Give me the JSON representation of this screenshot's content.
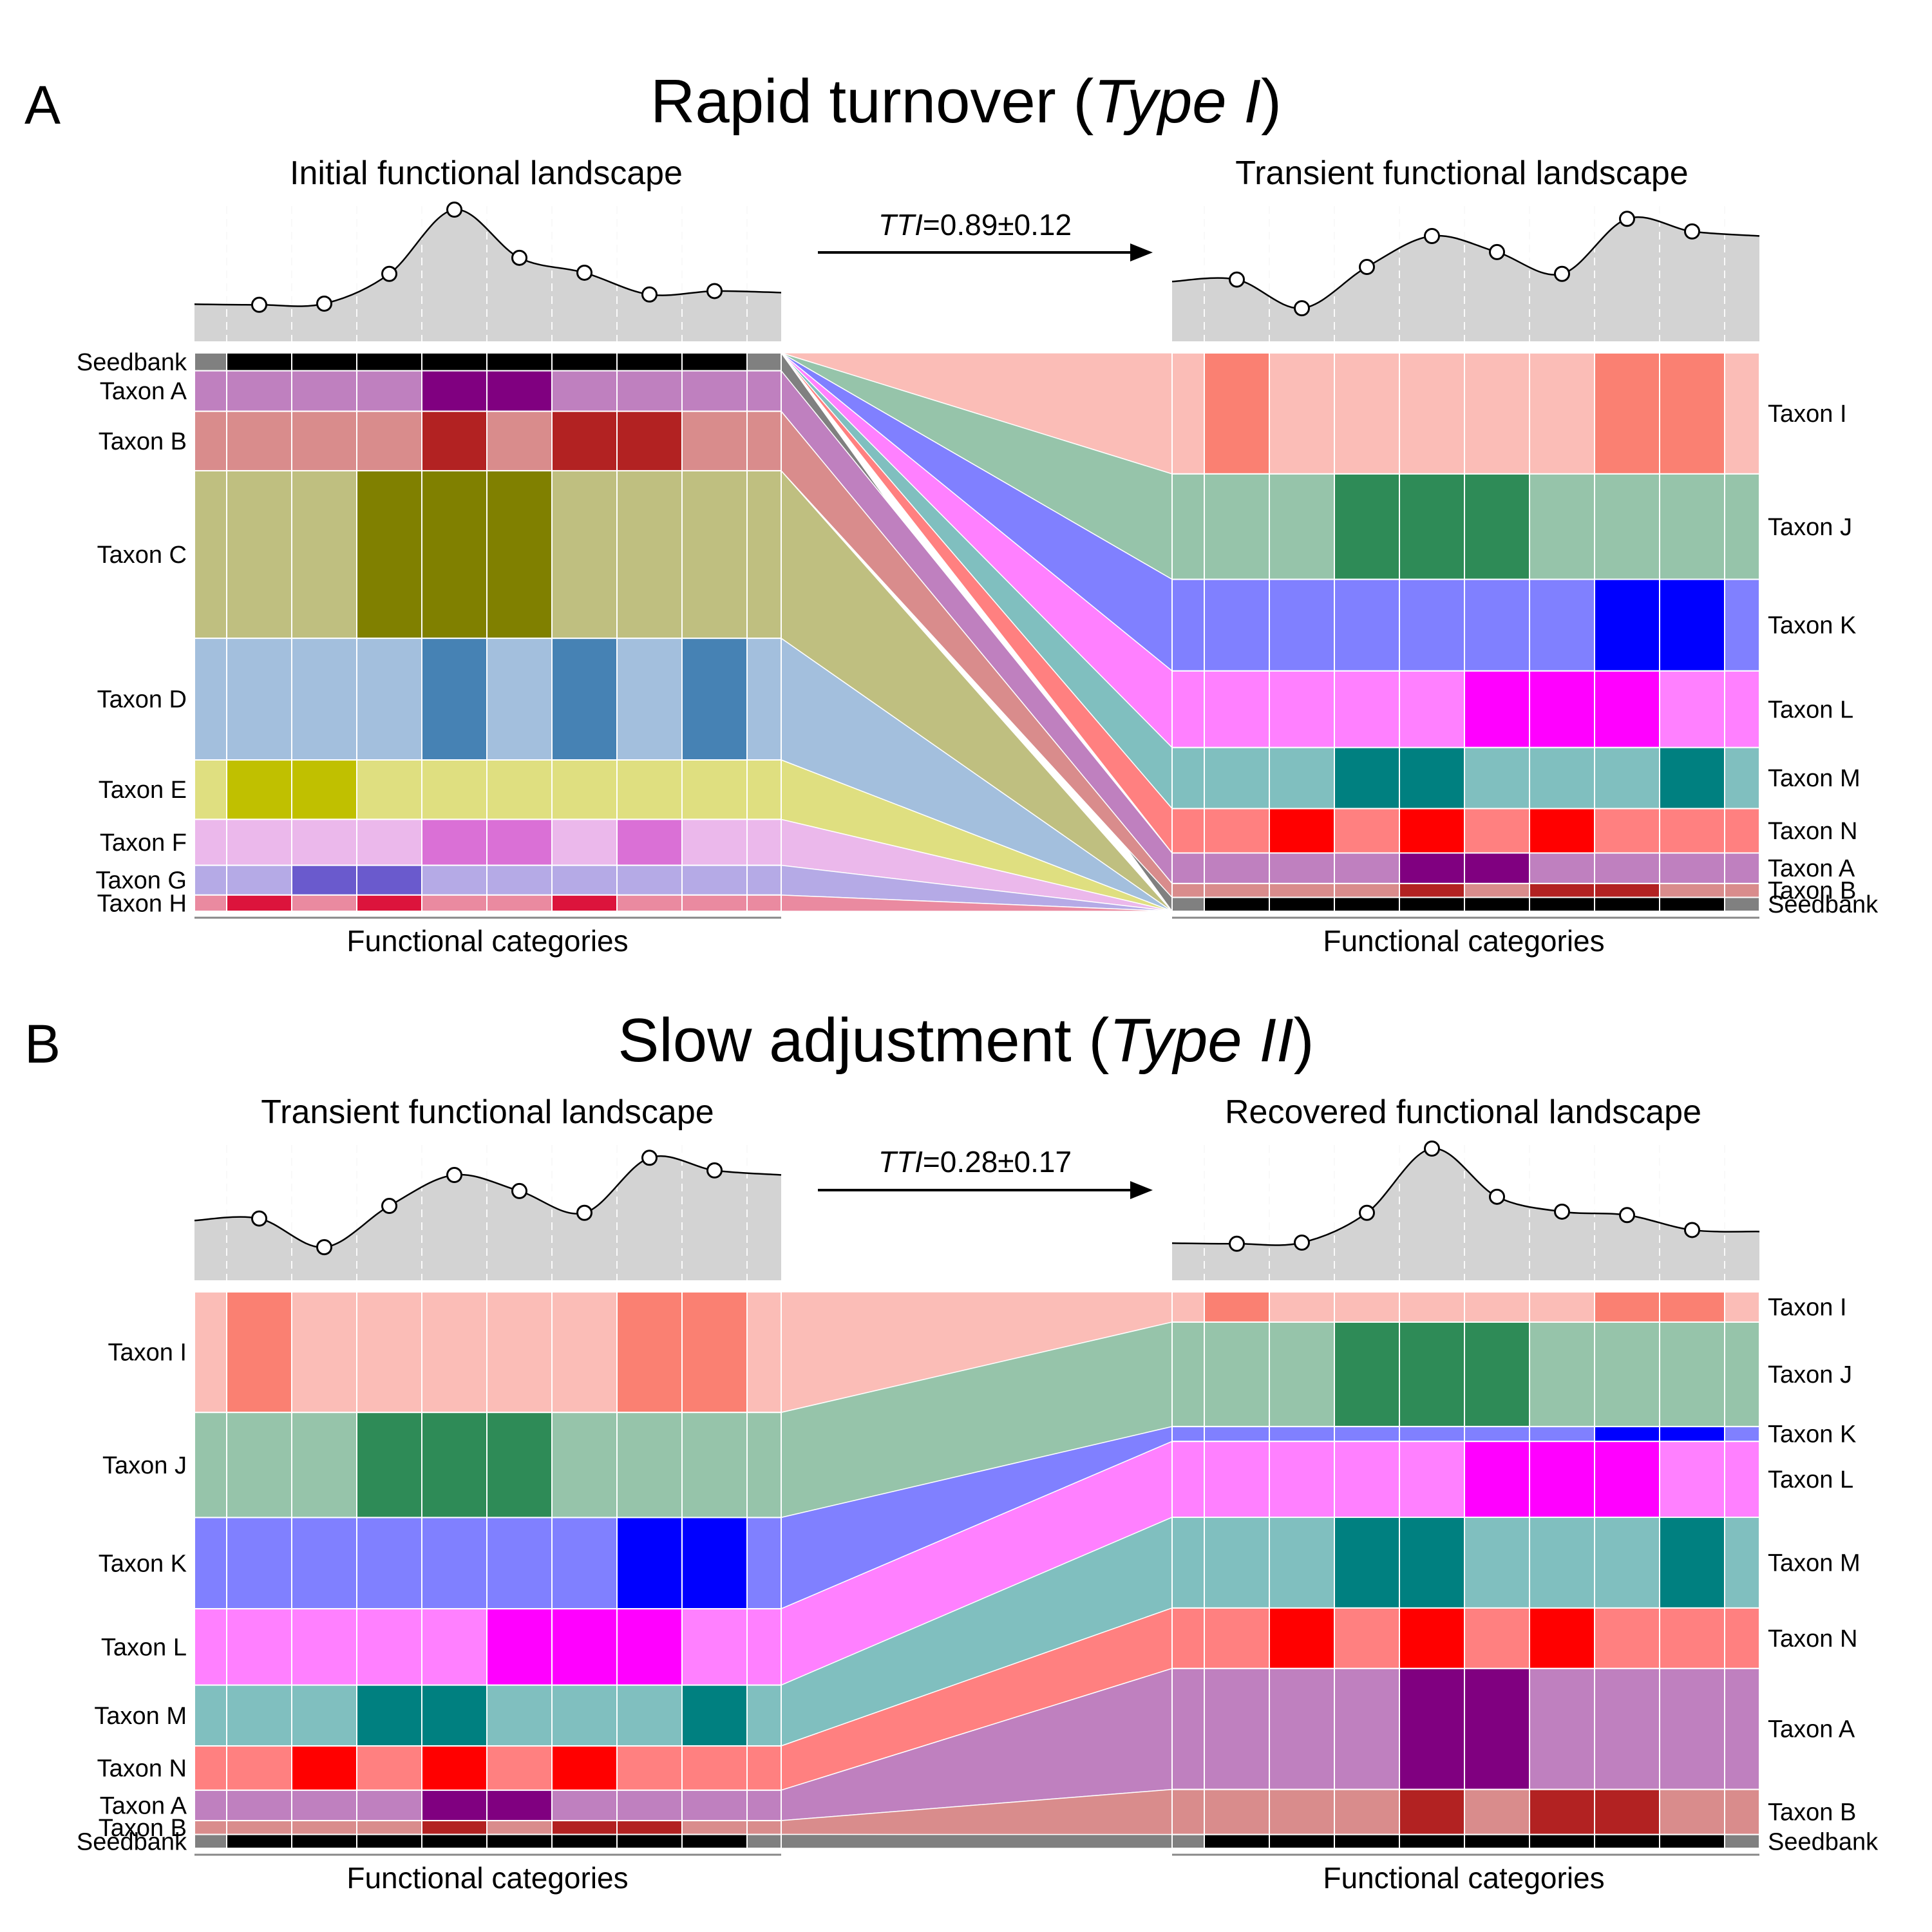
{
  "colors": {
    "Seedbank": [
      "#808080",
      "#000000"
    ],
    "Taxon A": [
      "#bf80bf",
      "#800080"
    ],
    "Taxon B": [
      "#d98c8c",
      "#b22222"
    ],
    "Taxon C": [
      "#bfbf80",
      "#808000"
    ],
    "Taxon D": [
      "#a3bfdd",
      "#4682b4"
    ],
    "Taxon E": [
      "#dfdf80",
      "#c0c000"
    ],
    "Taxon F": [
      "#ebb8eb",
      "#da70d6"
    ],
    "Taxon G": [
      "#b5aae6",
      "#6a5acd"
    ],
    "Taxon H": [
      "#ea8aa0",
      "#dc143c"
    ],
    "Taxon I": [
      "#fbbdb7",
      "#fa8072"
    ],
    "Taxon J": [
      "#96c4aa",
      "#2e8b57"
    ],
    "Taxon K": [
      "#8080ff",
      "#0000ff"
    ],
    "Taxon L": [
      "#ff80ff",
      "#ff00ff"
    ],
    "Taxon M": [
      "#80bfbf",
      "#008080"
    ],
    "Taxon N": [
      "#ff8080",
      "#ff0000"
    ]
  },
  "panels": [
    {
      "letter": "A",
      "title_main": "Rapid turnover (",
      "title_italic": "Type I",
      "title_end": ")",
      "tti_italic": "TTI",
      "tti_value": "=0.89±0.12",
      "left": {
        "title": "Initial functional landscape",
        "axis_label": "Functional categories",
        "curve": [
          0.15,
          0.16,
          0.42,
          0.98,
          0.56,
          0.43,
          0.24,
          0.27
        ],
        "rows": [
          {
            "taxon": "Seedbank",
            "label": "Seedbank",
            "weight": 0.033,
            "dark": [
              1,
              2,
              3,
              4,
              5,
              6,
              7,
              8
            ]
          },
          {
            "taxon": "Taxon A",
            "label": "Taxon A",
            "weight": 0.075,
            "dark": [
              4,
              5
            ]
          },
          {
            "taxon": "Taxon B",
            "label": "Taxon B",
            "weight": 0.11,
            "dark": [
              4,
              6,
              7
            ]
          },
          {
            "taxon": "Taxon C",
            "label": "Taxon C",
            "weight": 0.31,
            "dark": [
              3,
              4,
              5
            ]
          },
          {
            "taxon": "Taxon D",
            "label": "Taxon D",
            "weight": 0.225,
            "dark": [
              4,
              6,
              8
            ]
          },
          {
            "taxon": "Taxon E",
            "label": "Taxon E",
            "weight": 0.11,
            "dark": [
              1,
              2
            ]
          },
          {
            "taxon": "Taxon F",
            "label": "Taxon F",
            "weight": 0.085,
            "dark": [
              4,
              5,
              7
            ]
          },
          {
            "taxon": "Taxon G",
            "label": "Taxon G",
            "weight": 0.055,
            "dark": [
              2,
              3
            ]
          },
          {
            "taxon": "Taxon H",
            "label": "Taxon H",
            "weight": 0.03,
            "dark": [
              1,
              3,
              6
            ]
          }
        ]
      },
      "right": {
        "title": "Transient functional landscape",
        "axis_label": "Functional categories",
        "curve": [
          0.37,
          0.12,
          0.48,
          0.75,
          0.61,
          0.42,
          0.9,
          0.79
        ],
        "rows": [
          {
            "taxon": "Taxon I",
            "label": "Taxon I",
            "weight": 0.218,
            "dark": [
              1,
              7,
              8
            ]
          },
          {
            "taxon": "Taxon J",
            "label": "Taxon J",
            "weight": 0.19,
            "dark": [
              3,
              4,
              5
            ]
          },
          {
            "taxon": "Taxon K",
            "label": "Taxon K",
            "weight": 0.165,
            "dark": [
              7,
              8
            ]
          },
          {
            "taxon": "Taxon L",
            "label": "Taxon L",
            "weight": 0.138,
            "dark": [
              5,
              6,
              7
            ]
          },
          {
            "taxon": "Taxon M",
            "label": "Taxon M",
            "weight": 0.11,
            "dark": [
              3,
              4,
              8
            ]
          },
          {
            "taxon": "Taxon N",
            "label": "Taxon N",
            "weight": 0.08,
            "dark": [
              2,
              4,
              6
            ]
          },
          {
            "taxon": "Taxon A",
            "label": "Taxon A",
            "weight": 0.055,
            "dark": [
              4,
              5
            ]
          },
          {
            "taxon": "Taxon B",
            "label": "Taxon B",
            "weight": 0.025,
            "dark": [
              4,
              6,
              7
            ]
          },
          {
            "taxon": "Seedbank",
            "label": "Seedbank",
            "weight": 0.025,
            "dark": [
              1,
              2,
              3,
              4,
              5,
              6,
              7,
              8
            ]
          }
        ]
      }
    },
    {
      "letter": "B",
      "title_main": "Slow adjustment (",
      "title_italic": "Type II",
      "title_end": ")",
      "tti_italic": "TTI",
      "tti_value": "=0.28±0.17",
      "left": {
        "title": "Transient functional landscape",
        "axis_label": "Functional categories",
        "curve": [
          0.37,
          0.12,
          0.48,
          0.75,
          0.61,
          0.42,
          0.9,
          0.79
        ],
        "rows": [
          {
            "taxon": "Taxon I",
            "label": "Taxon I",
            "weight": 0.218,
            "dark": [
              1,
              7,
              8
            ]
          },
          {
            "taxon": "Taxon J",
            "label": "Taxon J",
            "weight": 0.19,
            "dark": [
              3,
              4,
              5
            ]
          },
          {
            "taxon": "Taxon K",
            "label": "Taxon K",
            "weight": 0.165,
            "dark": [
              7,
              8
            ]
          },
          {
            "taxon": "Taxon L",
            "label": "Taxon L",
            "weight": 0.138,
            "dark": [
              5,
              6,
              7
            ]
          },
          {
            "taxon": "Taxon M",
            "label": "Taxon M",
            "weight": 0.11,
            "dark": [
              3,
              4,
              8
            ]
          },
          {
            "taxon": "Taxon N",
            "label": "Taxon N",
            "weight": 0.08,
            "dark": [
              2,
              4,
              6
            ]
          },
          {
            "taxon": "Taxon A",
            "label": "Taxon A",
            "weight": 0.055,
            "dark": [
              4,
              5
            ]
          },
          {
            "taxon": "Taxon B",
            "label": "Taxon B",
            "weight": 0.025,
            "dark": [
              4,
              6,
              7
            ]
          },
          {
            "taxon": "Seedbank",
            "label": "Seedbank",
            "weight": 0.025,
            "dark": [
              1,
              2,
              3,
              4,
              5,
              6,
              7,
              8
            ]
          }
        ]
      },
      "right": {
        "title": "Recovered functional landscape",
        "axis_label": "Functional categories",
        "curve": [
          0.15,
          0.16,
          0.42,
          0.98,
          0.56,
          0.43,
          0.4,
          0.27
        ],
        "rows": [
          {
            "taxon": "Taxon I",
            "label": "Taxon I",
            "weight": 0.055,
            "dark": [
              1,
              7,
              8
            ]
          },
          {
            "taxon": "Taxon J",
            "label": "Taxon J",
            "weight": 0.19,
            "dark": [
              3,
              4,
              5
            ]
          },
          {
            "taxon": "Taxon K",
            "label": "Taxon K",
            "weight": 0.027,
            "dark": [
              7,
              8
            ]
          },
          {
            "taxon": "Taxon L",
            "label": "Taxon L",
            "weight": 0.138,
            "dark": [
              5,
              6,
              7
            ]
          },
          {
            "taxon": "Taxon M",
            "label": "Taxon M",
            "weight": 0.165,
            "dark": [
              3,
              4,
              8
            ]
          },
          {
            "taxon": "Taxon N",
            "label": "Taxon N",
            "weight": 0.11,
            "dark": [
              2,
              4,
              6
            ]
          },
          {
            "taxon": "Taxon A",
            "label": "Taxon A",
            "weight": 0.22,
            "dark": [
              4,
              5
            ]
          },
          {
            "taxon": "Taxon B",
            "label": "Taxon B",
            "weight": 0.082,
            "dark": [
              4,
              6,
              7
            ]
          },
          {
            "taxon": "Seedbank",
            "label": "Seedbank",
            "weight": 0.025,
            "dark": [
              1,
              2,
              3,
              4,
              5,
              6,
              7,
              8
            ]
          }
        ]
      }
    }
  ]
}
